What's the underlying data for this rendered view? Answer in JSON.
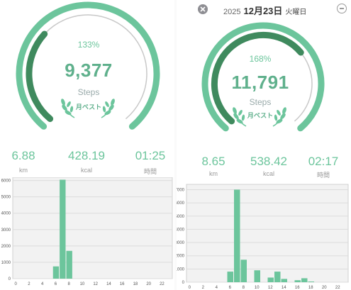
{
  "left": {
    "percent": "133%",
    "steps": "9,377",
    "steps_unit": "Steps",
    "best_label": "月ベスト",
    "stats": [
      {
        "value": "6.88",
        "label": "km"
      },
      {
        "value": "428.19",
        "label": "kcal"
      },
      {
        "value": "01:25",
        "label": "時間"
      }
    ],
    "progress_fraction": 1.33,
    "chart_data": {
      "type": "bar",
      "x_ticks": [
        "0",
        "2",
        "4",
        "6",
        "8",
        "10",
        "12",
        "14",
        "16",
        "18",
        "20",
        "22"
      ],
      "y_ticks": [
        "0",
        "1000",
        "2000",
        "3000",
        "4000",
        "5000",
        "6000"
      ],
      "ylim": [
        0,
        6200
      ],
      "bars": [
        {
          "hour": 6,
          "value": 750
        },
        {
          "hour": 7,
          "value": 6050
        },
        {
          "hour": 8,
          "value": 1700
        }
      ]
    }
  },
  "right": {
    "year": "2025",
    "month_day": "12月23日",
    "weekday": "火曜日",
    "percent": "168%",
    "steps": "11,791",
    "steps_unit": "Steps",
    "best_label": "月ベスト",
    "stats": [
      {
        "value": "8.65",
        "label": "km"
      },
      {
        "value": "538.42",
        "label": "kcal"
      },
      {
        "value": "02:17",
        "label": "時間"
      }
    ],
    "progress_fraction": 1.68,
    "chart_data": {
      "type": "bar",
      "x_ticks": [
        "0",
        "2",
        "4",
        "6",
        "8",
        "10",
        "12",
        "14",
        "16",
        "18",
        "20",
        "22"
      ],
      "y_ticks": [
        "0",
        "1000",
        "2000",
        "3000",
        "4000",
        "5000",
        "6000",
        "7000"
      ],
      "ylim": [
        0,
        7400
      ],
      "bars": [
        {
          "hour": 6,
          "value": 800
        },
        {
          "hour": 7,
          "value": 7000
        },
        {
          "hour": 8,
          "value": 1700
        },
        {
          "hour": 10,
          "value": 900
        },
        {
          "hour": 12,
          "value": 350
        },
        {
          "hour": 13,
          "value": 800
        },
        {
          "hour": 14,
          "value": 250
        },
        {
          "hour": 16,
          "value": 150
        },
        {
          "hour": 17,
          "value": 300
        },
        {
          "hour": 18,
          "value": 50
        }
      ]
    }
  },
  "colors": {
    "ring_light": "#6cc59c",
    "ring_dark": "#3f8a5e",
    "ring_track": "#c8c8c8",
    "bar": "#6cc59c",
    "chart_bg": "#f2f2f2",
    "grid": "#dcdcdc"
  }
}
